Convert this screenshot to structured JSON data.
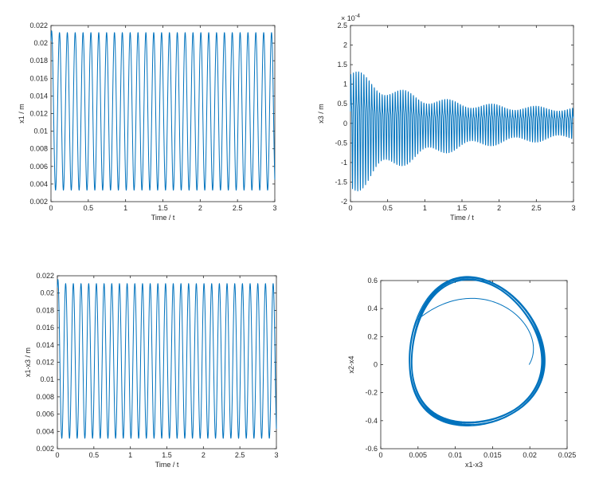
{
  "chart_data": [
    {
      "type": "line",
      "xlabel": "Time / t",
      "ylabel": "x1 / m",
      "xlim": [
        0,
        3
      ],
      "ylim": [
        0.002,
        0.022
      ],
      "xticks": [
        "0",
        "0.5",
        "1",
        "1.5",
        "2",
        "2.5",
        "3"
      ],
      "yticks": [
        "0.002",
        "0.004",
        "0.006",
        "0.008",
        "0.01",
        "0.012",
        "0.014",
        "0.016",
        "0.018",
        "0.02",
        "0.022"
      ],
      "grid": false,
      "series": [
        {
          "waveform": "sine",
          "start": 0.02,
          "first_peak": 0.0215,
          "max": 0.0212,
          "min": 0.0033,
          "cycles": 28.5,
          "t_end": 3,
          "color": "#0072BD"
        }
      ]
    },
    {
      "type": "line",
      "xlabel": "Time / t",
      "ylabel": "x3 / m",
      "exponent_label": "× 10",
      "exponent_power": "-4",
      "xlim": [
        0,
        3
      ],
      "ylim": [
        -2,
        2.5
      ],
      "xticks": [
        "0",
        "0.5",
        "1",
        "1.5",
        "2",
        "2.5",
        "3"
      ],
      "yticks": [
        "-2",
        "-1.5",
        "-1",
        "-0.5",
        "0",
        "0.5",
        "1",
        "1.5",
        "2",
        "2.5"
      ],
      "grid": false,
      "series": [
        {
          "waveform": "decaying oscillation",
          "initial_amplitude": 2.0,
          "final_amplitude": 0.45,
          "final_offset": 0.05,
          "t_end": 3,
          "color": "#0072BD"
        }
      ]
    },
    {
      "type": "line",
      "xlabel": "Time / t",
      "ylabel": "x1-x3 / m",
      "xlim": [
        0,
        3
      ],
      "ylim": [
        0.002,
        0.022
      ],
      "xticks": [
        "0",
        "0.5",
        "1",
        "1.5",
        "2",
        "2.5",
        "3"
      ],
      "yticks": [
        "0.002",
        "0.004",
        "0.006",
        "0.008",
        "0.01",
        "0.012",
        "0.014",
        "0.016",
        "0.018",
        "0.02",
        "0.022"
      ],
      "grid": false,
      "series": [
        {
          "waveform": "sine",
          "start": 0.02,
          "first_peak": 0.0218,
          "max": 0.0211,
          "min": 0.0032,
          "cycles": 28.5,
          "t_end": 3,
          "color": "#0072BD"
        }
      ]
    },
    {
      "type": "line",
      "xlabel": "x1-x3",
      "ylabel": "x2-x4",
      "xlim": [
        0,
        0.025
      ],
      "ylim": [
        -0.6,
        0.6
      ],
      "xticks": [
        "0",
        "0.005",
        "0.01",
        "0.015",
        "0.02",
        "0.025"
      ],
      "yticks": [
        "-0.6",
        "-0.4",
        "-0.2",
        "0",
        "0.2",
        "0.4",
        "0.6"
      ],
      "grid": false,
      "series": [
        {
          "waveform": "phase portrait (limit cycle)",
          "start": [
            0.0199,
            0.0
          ],
          "x_range": [
            0.0033,
            0.0211
          ],
          "y_range": [
            -0.46,
            0.58
          ],
          "color": "#0072BD"
        }
      ]
    }
  ]
}
